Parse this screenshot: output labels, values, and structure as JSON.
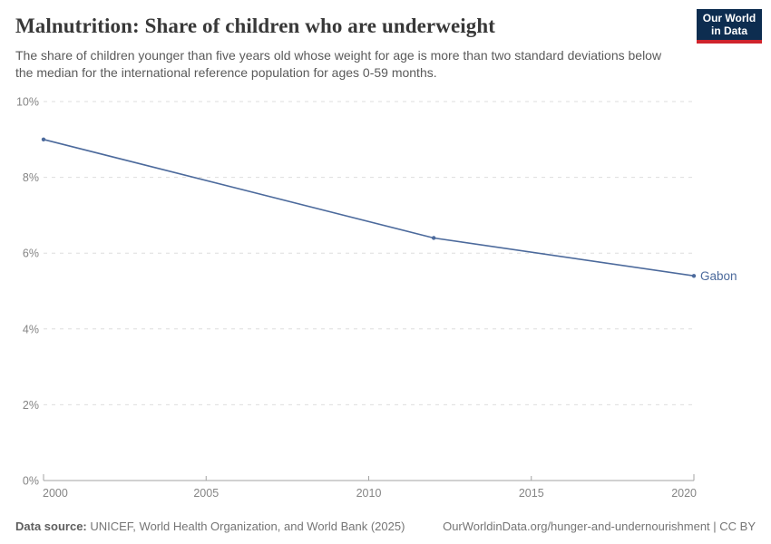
{
  "header": {
    "title": "Malnutrition: Share of children who are underweight",
    "subtitle": "The share of children younger than five years old whose weight for age is more than two standard deviations below the median for the international reference population for ages 0-59 months.",
    "logo": {
      "line1": "Our World",
      "line2": "in Data",
      "bg_color": "#0d2d50",
      "accent_color": "#cf242c"
    }
  },
  "chart_data": {
    "type": "line",
    "title": "Malnutrition: Share of children who are underweight",
    "xlabel": "",
    "ylabel": "",
    "x": {
      "min": 2000,
      "max": 2020,
      "ticks": [
        2000,
        2005,
        2010,
        2015,
        2020
      ]
    },
    "y": {
      "min": 0,
      "max": 10,
      "ticks": [
        0,
        2,
        4,
        6,
        8,
        10
      ],
      "tick_suffix": "%"
    },
    "grid": "horizontal-dashed",
    "legend_position": "end-of-line-label",
    "series": [
      {
        "name": "Gabon",
        "color": "#4c6a9c",
        "points": [
          [
            2000,
            9.0
          ],
          [
            2012,
            6.4
          ],
          [
            2020,
            5.4
          ]
        ]
      }
    ],
    "colors": {
      "gridline": "#dedede",
      "axis": "#a3a3a3",
      "tick_label": "#858585"
    }
  },
  "footer": {
    "source_label": "Data source:",
    "source_text": " UNICEF, World Health Organization, and World Bank (2025)",
    "credit": "OurWorldinData.org/hunger-and-undernourishment | CC BY"
  }
}
